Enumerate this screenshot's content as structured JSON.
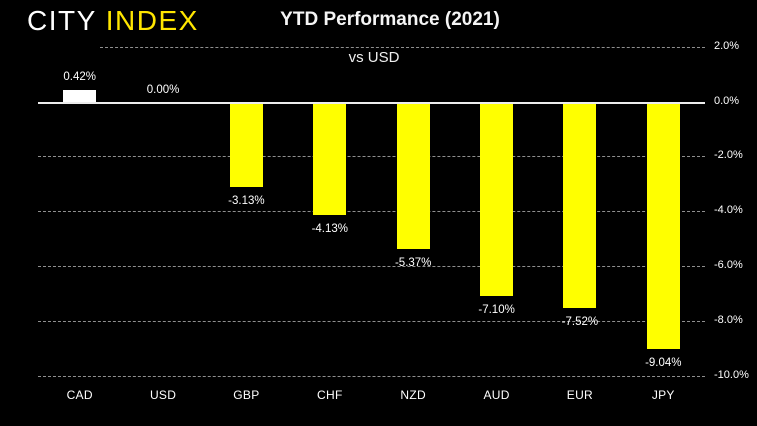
{
  "logo": {
    "text_primary": "CITY",
    "text_accent": "INDEX"
  },
  "header": {
    "title": "YTD Performance (2021)",
    "subtitle": "vs USD"
  },
  "colors": {
    "background": "#000000",
    "bar_positive": "#ffffff",
    "bar_negative": "#ffff00",
    "logo_accent": "#ffe600",
    "gridline": "#8f8f8f",
    "zero_line": "#ececec",
    "text": "#ffffff"
  },
  "chart_data": {
    "type": "bar",
    "title": "YTD Performance (2021)",
    "subtitle": "vs USD",
    "xlabel": "",
    "ylabel": "",
    "categories": [
      "CAD",
      "USD",
      "GBP",
      "CHF",
      "NZD",
      "AUD",
      "EUR",
      "JPY"
    ],
    "values": [
      0.42,
      0.0,
      -3.13,
      -4.13,
      -5.37,
      -7.1,
      -7.52,
      -9.04
    ],
    "value_labels": [
      "0.42%",
      "0.00%",
      "-3.13%",
      "-4.13%",
      "-5.37%",
      "-7.10%",
      "-7.52%",
      "-9.04%"
    ],
    "bar_colors": [
      "#ffffff",
      "#ffff00",
      "#ffff00",
      "#ffff00",
      "#ffff00",
      "#ffff00",
      "#ffff00",
      "#ffff00"
    ],
    "ylim": [
      -10,
      2
    ],
    "yticks": [
      2,
      0,
      -2,
      -4,
      -6,
      -8,
      -10
    ],
    "ytick_labels": [
      "2.0%",
      "0.0%",
      "-2.0%",
      "-4.0%",
      "-6.0%",
      "-8.0%",
      "-10.0%"
    ],
    "grid": "horizontal-dashed",
    "axis_side": "right",
    "legend": "none"
  }
}
